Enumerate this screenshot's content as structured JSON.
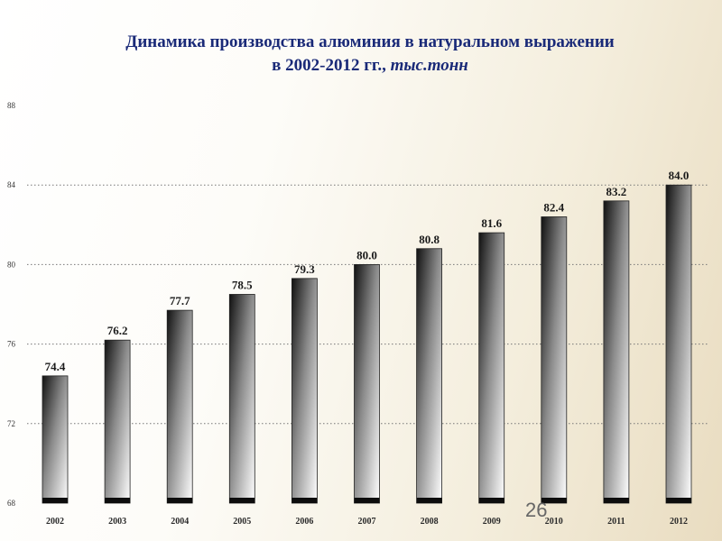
{
  "title": {
    "line1": "Динамика производства алюминия в натуральном выражении",
    "line2_main": "в 2002-2012 гг., ",
    "line2_unit": "тыс.тонн"
  },
  "page_number": "26",
  "chart_data": {
    "type": "bar",
    "title": "Динамика производства алюминия в натуральном выражении в 2002-2012 гг., тыс.тонн",
    "categories": [
      "2002",
      "2003",
      "2004",
      "2005",
      "2006",
      "2007",
      "2008",
      "2009",
      "2010",
      "2011",
      "2012"
    ],
    "values": [
      74.4,
      76.2,
      77.7,
      78.5,
      79.3,
      80.0,
      80.8,
      81.6,
      82.4,
      83.2,
      84.0
    ],
    "value_labels": [
      "74.4",
      "76.2",
      "77.7",
      "78.5",
      "79.3",
      "80.0",
      "80.8",
      "81.6",
      "82.4",
      "83.2",
      "84.0"
    ],
    "ylim": [
      68,
      88
    ],
    "yticks": [
      68,
      72,
      76,
      80,
      84,
      88
    ],
    "grid": true,
    "legend": "none"
  }
}
